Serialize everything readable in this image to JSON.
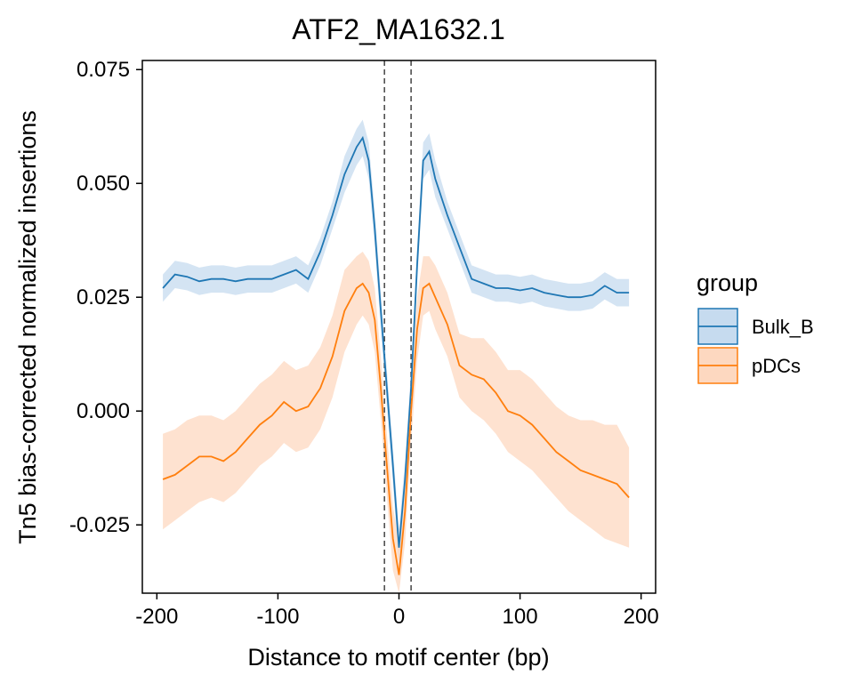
{
  "chart_data": {
    "type": "line",
    "title": "ATF2_MA1632.1",
    "xlabel": "Distance to motif center (bp)",
    "ylabel": "Tn5 bias-corrected normalized insertions",
    "xlim": [
      -212,
      212
    ],
    "ylim": [
      -0.04,
      0.077
    ],
    "x_ticks": [
      -200,
      -100,
      0,
      100,
      200
    ],
    "x_tick_labels": [
      "-200",
      "-100",
      "0",
      "100",
      "200"
    ],
    "y_ticks": [
      -0.025,
      0.0,
      0.025,
      0.05,
      0.075
    ],
    "y_tick_labels": [
      "-0.025",
      "0.000",
      "0.025",
      "0.050",
      "0.075"
    ],
    "grid": false,
    "vlines": [
      -12,
      10
    ],
    "vline_style": "dashed",
    "legend": {
      "title": "group",
      "position": "right"
    },
    "x": [
      -195,
      -185,
      -175,
      -165,
      -155,
      -145,
      -135,
      -125,
      -115,
      -105,
      -95,
      -85,
      -75,
      -65,
      -55,
      -45,
      -35,
      -30,
      -25,
      -20,
      -15,
      -10,
      -5,
      0,
      5,
      10,
      15,
      20,
      25,
      30,
      40,
      50,
      60,
      70,
      80,
      90,
      100,
      110,
      120,
      130,
      140,
      150,
      160,
      170,
      180,
      190
    ],
    "series": [
      {
        "name": "Bulk_B",
        "color": "#1f77b4",
        "fill": "#c6dbef",
        "values": [
          0.027,
          0.03,
          0.0295,
          0.0285,
          0.029,
          0.029,
          0.0285,
          0.029,
          0.029,
          0.029,
          0.03,
          0.031,
          0.029,
          0.035,
          0.043,
          0.052,
          0.058,
          0.06,
          0.055,
          0.04,
          0.022,
          0.005,
          -0.012,
          -0.03,
          -0.015,
          0.005,
          0.032,
          0.055,
          0.057,
          0.051,
          0.043,
          0.036,
          0.029,
          0.028,
          0.027,
          0.027,
          0.0265,
          0.027,
          0.026,
          0.0255,
          0.025,
          0.025,
          0.0255,
          0.0275,
          0.026,
          0.026
        ],
        "lower": [
          0.024,
          0.027,
          0.0265,
          0.0255,
          0.026,
          0.026,
          0.0255,
          0.026,
          0.026,
          0.026,
          0.027,
          0.028,
          0.026,
          0.032,
          0.04,
          0.048,
          0.054,
          0.056,
          0.051,
          0.036,
          0.018,
          0.001,
          -0.016,
          -0.034,
          -0.019,
          0.001,
          0.028,
          0.051,
          0.053,
          0.047,
          0.04,
          0.033,
          0.026,
          0.025,
          0.024,
          0.024,
          0.0235,
          0.024,
          0.023,
          0.0225,
          0.022,
          0.022,
          0.0225,
          0.0245,
          0.023,
          0.023
        ],
        "upper": [
          0.03,
          0.033,
          0.0325,
          0.0315,
          0.032,
          0.032,
          0.0315,
          0.032,
          0.032,
          0.032,
          0.033,
          0.034,
          0.032,
          0.038,
          0.046,
          0.056,
          0.062,
          0.064,
          0.059,
          0.044,
          0.026,
          0.009,
          -0.008,
          -0.026,
          -0.011,
          0.009,
          0.036,
          0.059,
          0.061,
          0.055,
          0.046,
          0.039,
          0.032,
          0.031,
          0.03,
          0.03,
          0.0295,
          0.03,
          0.029,
          0.0285,
          0.028,
          0.028,
          0.0285,
          0.0305,
          0.029,
          0.029
        ]
      },
      {
        "name": "pDCs",
        "color": "#ff7f0e",
        "fill": "#fdd8c0",
        "values": [
          -0.015,
          -0.014,
          -0.012,
          -0.01,
          -0.01,
          -0.011,
          -0.009,
          -0.006,
          -0.003,
          -0.001,
          0.002,
          0.0,
          0.001,
          0.005,
          0.012,
          0.022,
          0.027,
          0.028,
          0.026,
          0.02,
          0.005,
          -0.012,
          -0.028,
          -0.036,
          -0.022,
          0.0,
          0.018,
          0.027,
          0.028,
          0.025,
          0.019,
          0.01,
          0.008,
          0.007,
          0.004,
          0.0,
          -0.001,
          -0.003,
          -0.006,
          -0.009,
          -0.011,
          -0.013,
          -0.014,
          -0.015,
          -0.016,
          -0.019
        ],
        "lower": [
          -0.026,
          -0.024,
          -0.022,
          -0.02,
          -0.019,
          -0.02,
          -0.018,
          -0.015,
          -0.012,
          -0.01,
          -0.007,
          -0.009,
          -0.008,
          -0.004,
          0.003,
          0.013,
          0.019,
          0.021,
          0.019,
          0.013,
          -0.002,
          -0.019,
          -0.035,
          -0.04,
          -0.029,
          -0.007,
          0.011,
          0.021,
          0.022,
          0.018,
          0.012,
          0.003,
          0.0,
          -0.002,
          -0.005,
          -0.009,
          -0.011,
          -0.013,
          -0.016,
          -0.019,
          -0.022,
          -0.024,
          -0.026,
          -0.028,
          -0.029,
          -0.03
        ],
        "upper": [
          -0.005,
          -0.004,
          -0.002,
          -0.001,
          -0.001,
          -0.002,
          0.0,
          0.003,
          0.006,
          0.008,
          0.011,
          0.009,
          0.01,
          0.014,
          0.021,
          0.031,
          0.034,
          0.035,
          0.033,
          0.027,
          0.012,
          -0.005,
          -0.021,
          -0.029,
          -0.015,
          0.007,
          0.025,
          0.034,
          0.034,
          0.032,
          0.026,
          0.017,
          0.016,
          0.016,
          0.013,
          0.009,
          0.009,
          0.007,
          0.004,
          0.001,
          -0.001,
          -0.002,
          -0.002,
          -0.003,
          -0.003,
          -0.008
        ]
      }
    ]
  }
}
